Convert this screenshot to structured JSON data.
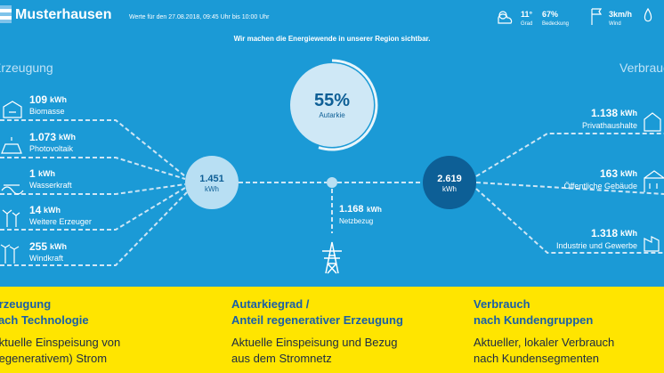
{
  "header": {
    "title": "Musterhausen",
    "period": "Werte für den 27.08.2018, 09:45 Uhr bis 10:00 Uhr",
    "weather": [
      {
        "value": "11°",
        "label": "Grad"
      },
      {
        "value": "67%",
        "label": "Bedeckung"
      },
      {
        "value": "3km/h",
        "label": "Wind"
      }
    ]
  },
  "tagline": "Wir machen die Energiewende in unserer Region sichtbar.",
  "generation": {
    "heading": "Erzeugung",
    "sources": [
      {
        "value": "109",
        "unit": "kWh",
        "label": "Biomasse"
      },
      {
        "value": "1.073",
        "unit": "kWh",
        "label": "Photovoltaik"
      },
      {
        "value": "1",
        "unit": "kWh",
        "label": "Wasserkraft"
      },
      {
        "value": "14",
        "unit": "kWh",
        "label": "Weitere Erzeuger"
      },
      {
        "value": "255",
        "unit": "kWh",
        "label": "Windkraft"
      }
    ]
  },
  "autarky": {
    "value": "55%",
    "label": "Autarkie"
  },
  "hub_generation": {
    "value": "1.451",
    "unit": "kWh"
  },
  "grid": {
    "value": "1.168",
    "unit": "kWh",
    "label": "Netzbezug"
  },
  "hub_consumption": {
    "value": "2.619",
    "unit": "kWh"
  },
  "consumption": {
    "heading": "Verbrauch",
    "groups": [
      {
        "value": "1.138",
        "unit": "kWh",
        "label": "Privathaushalte"
      },
      {
        "value": "163",
        "unit": "kWh",
        "label": "Öffentliche Gebäude"
      },
      {
        "value": "1.318",
        "unit": "kWh",
        "label": "Industrie und Gewerbe"
      }
    ]
  },
  "footer": [
    {
      "title": [
        "Erzeugung",
        "nach Technologie"
      ],
      "text": [
        "Aktuelle Einspeisung von",
        "(regenerativem) Strom"
      ]
    },
    {
      "title": [
        "Autarkiegrad /",
        "Anteil regenerativer Erzeugung"
      ],
      "text": [
        "Aktuelle Einspeisung und Bezug",
        "aus dem Stromnetz"
      ]
    },
    {
      "title": [
        "Verbrauch",
        "nach Kundengruppen"
      ],
      "text": [
        "Aktueller, lokaler Verbrauch",
        "nach Kundensegmenten"
      ]
    }
  ]
}
